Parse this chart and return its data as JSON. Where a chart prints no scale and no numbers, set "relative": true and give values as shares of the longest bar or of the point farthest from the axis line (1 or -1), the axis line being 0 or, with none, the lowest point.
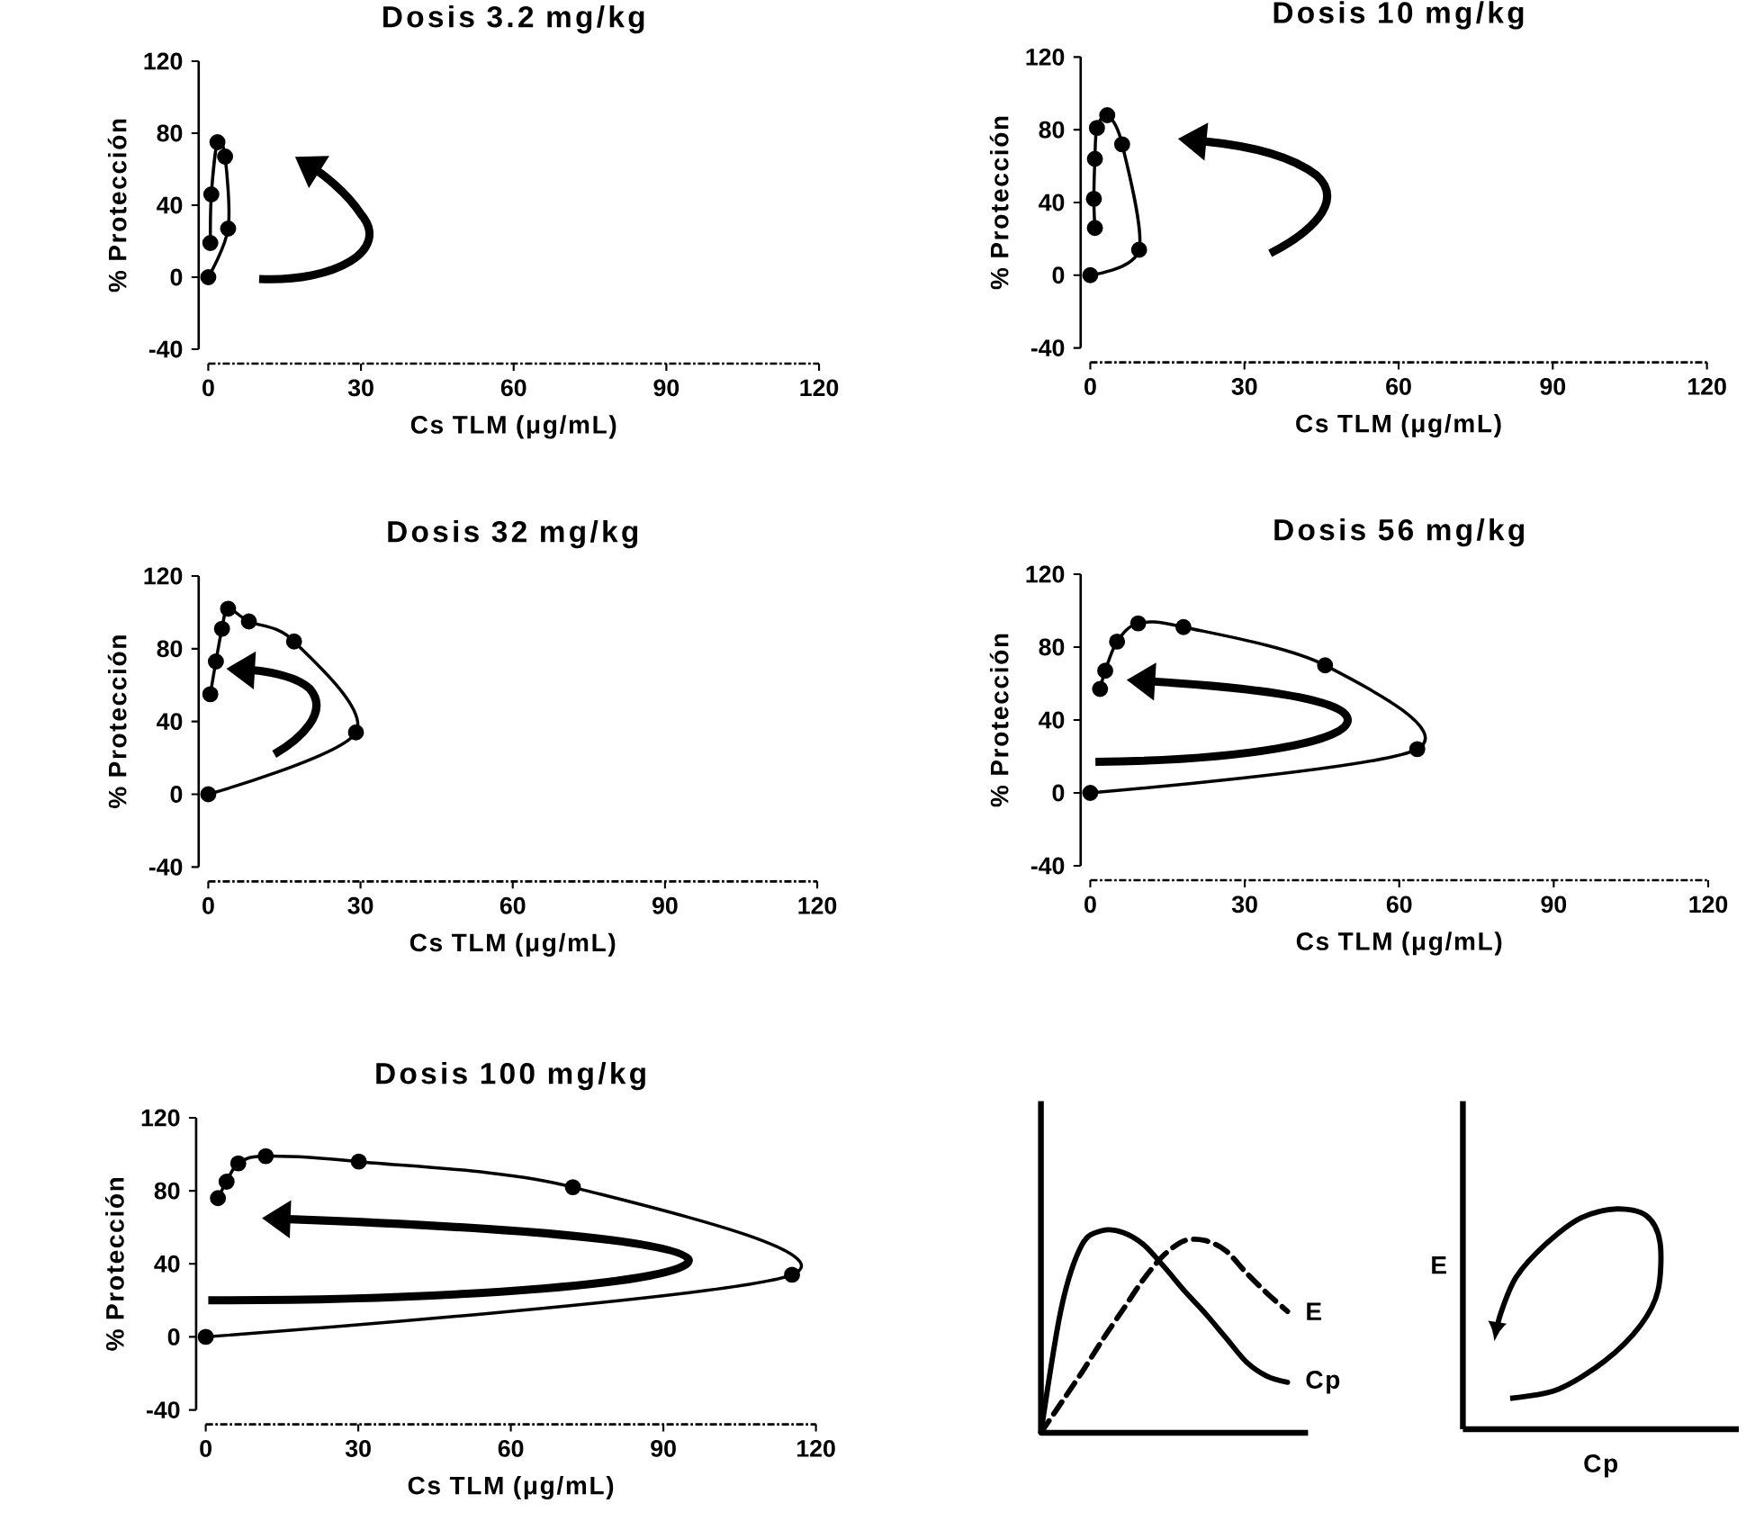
{
  "chart_data": [
    {
      "type": "line",
      "title": "Dosis 3.2 mg/kg",
      "xlabel": "Cs TLM (μg/mL)",
      "ylabel": "% Protección",
      "x": [
        0,
        3.9,
        3.3,
        1.8,
        0.6,
        0.4
      ],
      "xlim": [
        0,
        120
      ],
      "ylim": [
        -40,
        120
      ],
      "xticks": [
        0,
        30,
        60,
        90,
        120
      ],
      "yticks": [
        -40,
        0,
        40,
        80,
        120
      ],
      "marker": "circle",
      "series": [
        {
          "color": "#000000",
          "values": [
            0,
            27,
            67,
            75,
            46,
            19
          ]
        }
      ]
    },
    {
      "type": "line",
      "title": "Dosis 10 mg/kg",
      "xlabel": "Cs TLM (μg/mL)",
      "ylabel": "% Protección",
      "x": [
        0,
        9.5,
        6.2,
        3.3,
        1.3,
        0.9,
        0.7,
        0.9
      ],
      "xlim": [
        0,
        120
      ],
      "ylim": [
        -40,
        120
      ],
      "xticks": [
        0,
        30,
        60,
        90,
        120
      ],
      "yticks": [
        -40,
        0,
        40,
        80,
        120
      ],
      "marker": "circle",
      "series": [
        {
          "color": "#000000",
          "values": [
            0,
            14,
            72,
            88,
            81,
            64,
            42,
            26
          ]
        }
      ]
    },
    {
      "type": "line",
      "title": "Dosis 32 mg/kg",
      "xlabel": "Cs TLM (μg/mL)",
      "ylabel": "% Protección",
      "x": [
        0,
        29.1,
        16.9,
        8.0,
        3.9,
        2.7,
        1.5,
        0.4
      ],
      "xlim": [
        0,
        120
      ],
      "ylim": [
        -40,
        120
      ],
      "xticks": [
        0,
        30,
        60,
        90,
        120
      ],
      "yticks": [
        -40,
        0,
        40,
        80,
        120
      ],
      "marker": "circle",
      "series": [
        {
          "color": "#000000",
          "values": [
            0,
            34,
            84,
            95,
            102,
            91,
            73,
            55
          ]
        }
      ]
    },
    {
      "type": "line",
      "title": "Dosis 56 mg/kg",
      "xlabel": "Cs TLM (μg/mL)",
      "ylabel": "% Protección",
      "x": [
        0,
        63.5,
        45.6,
        18.1,
        9.3,
        5.2,
        2.9,
        1.9
      ],
      "xlim": [
        0,
        120
      ],
      "ylim": [
        -40,
        120
      ],
      "xticks": [
        0,
        30,
        60,
        90,
        120
      ],
      "yticks": [
        -40,
        0,
        40,
        80,
        120
      ],
      "marker": "circle",
      "series": [
        {
          "color": "#000000",
          "values": [
            0,
            24,
            70,
            91,
            93,
            83,
            67,
            57
          ]
        }
      ]
    },
    {
      "type": "line",
      "title": "Dosis 100 mg/kg",
      "xlabel": "Cs TLM (μg/mL)",
      "ylabel": "% Protección",
      "x": [
        0,
        115.3,
        72.2,
        30.1,
        11.8,
        6.4,
        4.1,
        2.4
      ],
      "xlim": [
        0,
        120
      ],
      "ylim": [
        -40,
        120
      ],
      "xticks": [
        0,
        30,
        60,
        90,
        120
      ],
      "yticks": [
        -40,
        0,
        40,
        80,
        120
      ],
      "marker": "circle",
      "series": [
        {
          "color": "#000000",
          "values": [
            0,
            34,
            82,
            96,
            99,
            95,
            85,
            76
          ]
        }
      ]
    },
    {
      "type": "line",
      "relative": true,
      "marker": "none",
      "categories": [
        null,
        null,
        null,
        null,
        null,
        null,
        null,
        null,
        null,
        null,
        null,
        null,
        null
      ],
      "series": [
        {
          "name": "E",
          "color": "#000000",
          "line_style": "dashed",
          "values": [
            0,
            0.15,
            0.3,
            0.46,
            0.61,
            0.76,
            0.88,
            0.95,
            0.95,
            0.9,
            0.79,
            0.69,
            0.6
          ]
        },
        {
          "name": "Cp",
          "color": "#000000",
          "line_style": "solid",
          "values": [
            0,
            0.62,
            0.93,
            1.0,
            0.99,
            0.93,
            0.82,
            0.7,
            0.59,
            0.47,
            0.35,
            0.28,
            0.25
          ]
        }
      ]
    },
    {
      "type": "other",
      "xlabel": "Cp",
      "ylabel": "E"
    }
  ]
}
